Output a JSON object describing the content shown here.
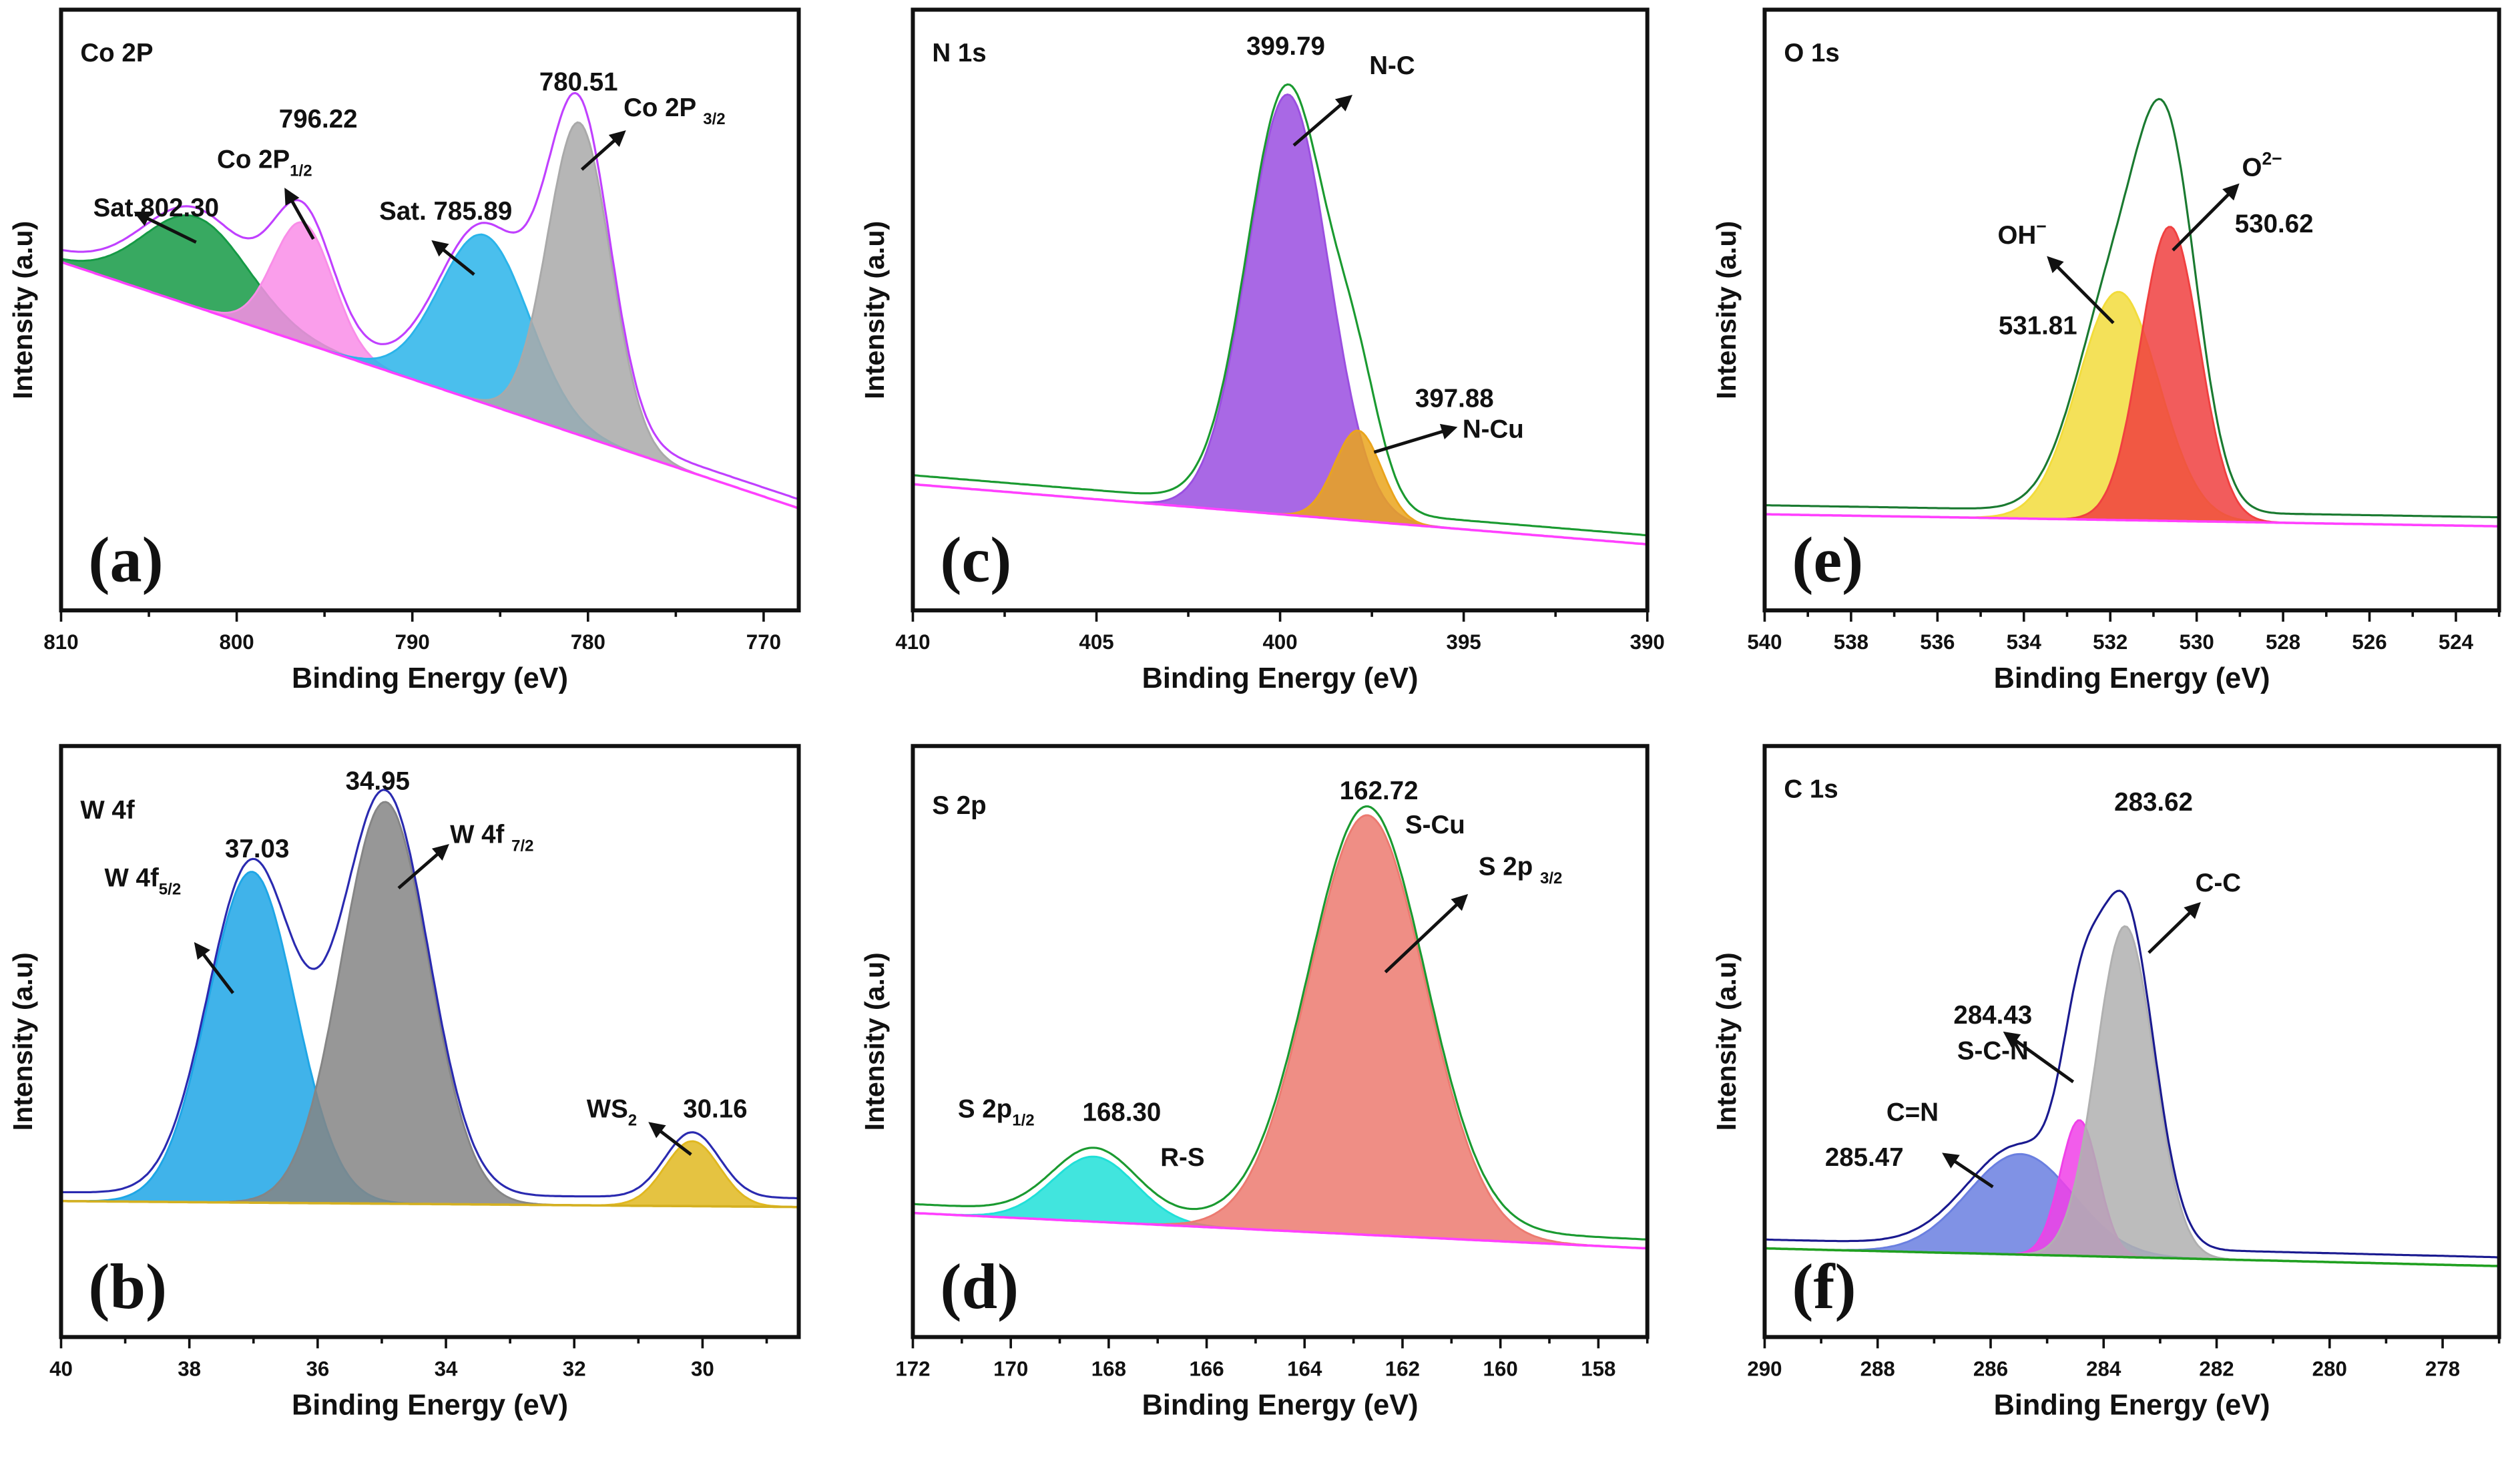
{
  "chart_data": [
    {
      "id": "a",
      "type": "area",
      "letter": "(a)",
      "title": "Co 2P",
      "xlabel": "Binding Energy (eV)",
      "ylabel": "Intensity (a.u)",
      "xlim": [
        810,
        768
      ],
      "ylim": [
        0,
        1
      ],
      "xticks": [
        810,
        800,
        790,
        780,
        770
      ],
      "minor_step": 5,
      "baseline": [
        0.58,
        0.17
      ],
      "envelope_color": "#c040ff",
      "baseline_color": "#ff40ff",
      "peaks": [
        {
          "name": "Sat. 802.30",
          "center": 802.3,
          "height": 0.15,
          "fwhm": 7,
          "color": "#159a45"
        },
        {
          "name": "Co 2P1/2 796.22",
          "center": 796.22,
          "height": 0.2,
          "fwhm": 4,
          "color": "#f98de8"
        },
        {
          "name": "Sat. 785.89",
          "center": 785.89,
          "height": 0.28,
          "fwhm": 6,
          "color": "#2ab4ea"
        },
        {
          "name": "Co 2P3/2 780.51",
          "center": 780.51,
          "height": 0.52,
          "fwhm": 4.2,
          "color": "#a9a9a9"
        }
      ],
      "annotations": [
        {
          "text": "796.22"
        },
        {
          "text": "Co 2P",
          "sub": "1/2"
        },
        {
          "text": "Sat.802.30"
        },
        {
          "text": "Sat. 785.89"
        },
        {
          "text": "780.51"
        },
        {
          "text": "Co 2P ",
          "sub": "3/2"
        }
      ]
    },
    {
      "id": "c",
      "type": "area",
      "letter": "(c)",
      "title": "N 1s",
      "xlabel": "Binding Energy (eV)",
      "ylabel": "Intensity (a.u)",
      "xlim": [
        410,
        390
      ],
      "ylim": [
        0,
        1
      ],
      "xticks": [
        410,
        405,
        400,
        395,
        390
      ],
      "minor_step": 2.5,
      "baseline": [
        0.21,
        0.11
      ],
      "envelope_color": "#1a9a30",
      "baseline_color": "#ff40ff",
      "peaks": [
        {
          "name": "N-C 399.79",
          "center": 399.79,
          "height": 0.7,
          "fwhm": 2.6,
          "color": "#9a4ee0"
        },
        {
          "name": "N-Cu 397.88",
          "center": 397.88,
          "height": 0.15,
          "fwhm": 1.5,
          "color": "#eaa41c"
        }
      ],
      "annotations": [
        {
          "text": "399.79"
        },
        {
          "text": "N-C"
        },
        {
          "text": "397.88"
        },
        {
          "text": "N-Cu"
        }
      ]
    },
    {
      "id": "e",
      "type": "area",
      "letter": "(e)",
      "title": "O 1s",
      "xlabel": "Binding Energy (eV)",
      "ylabel": "Intensity (a.u)",
      "xlim": [
        540,
        523
      ],
      "ylim": [
        0,
        1
      ],
      "xticks": [
        540,
        538,
        536,
        534,
        532,
        530,
        528,
        526,
        524
      ],
      "minor_step": 1,
      "baseline": [
        0.16,
        0.14
      ],
      "envelope_color": "#1a7a30",
      "baseline_color": "#ff40ff",
      "peaks": [
        {
          "name": "OH- 531.81",
          "center": 531.81,
          "height": 0.38,
          "fwhm": 2.2,
          "color": "#f2dc3c"
        },
        {
          "name": "O2- 530.62",
          "center": 530.62,
          "height": 0.49,
          "fwhm": 1.6,
          "color": "#f04040"
        }
      ],
      "annotations": [
        {
          "text": "OH",
          "sup": "−"
        },
        {
          "text": "531.81"
        },
        {
          "text": "O",
          "sup": "2−"
        },
        {
          "text": "530.62"
        }
      ]
    },
    {
      "id": "b",
      "type": "area",
      "letter": "(b)",
      "title": "W 4f",
      "xlabel": "Binding Energy (eV)",
      "ylabel": "Intensity (a.u)",
      "xlim": [
        40,
        28.5
      ],
      "ylim": [
        0,
        1
      ],
      "xticks": [
        40,
        38,
        36,
        34,
        32,
        30
      ],
      "minor_step": 1,
      "baseline": [
        0.23,
        0.22
      ],
      "envelope_color": "#2a2ab0",
      "baseline_color": "#d4b020",
      "peaks": [
        {
          "name": "W 4f5/2 37.03",
          "center": 37.03,
          "height": 0.56,
          "fwhm": 1.6,
          "color": "#1ea6e6"
        },
        {
          "name": "W 4f7/2 34.95",
          "center": 34.95,
          "height": 0.68,
          "fwhm": 1.6,
          "color": "#858585"
        },
        {
          "name": "WS2 30.16",
          "center": 30.16,
          "height": 0.11,
          "fwhm": 1.0,
          "color": "#e0b820"
        }
      ],
      "annotations": [
        {
          "text": "37.03"
        },
        {
          "text": "W 4f",
          "sub": "5/2"
        },
        {
          "text": "34.95"
        },
        {
          "text": "W 4f ",
          "sub": "7/2"
        },
        {
          "text": "WS",
          "sub": "2"
        },
        {
          "text": "30.16"
        }
      ]
    },
    {
      "id": "d",
      "type": "area",
      "letter": "(d)",
      "title": "S 2p",
      "xlabel": "Binding Energy (eV)",
      "ylabel": "Intensity (a.u)",
      "xlim": [
        172,
        157
      ],
      "ylim": [
        0,
        1
      ],
      "xticks": [
        172,
        170,
        168,
        166,
        164,
        162,
        160,
        158
      ],
      "minor_step": 1,
      "baseline": [
        0.21,
        0.15
      ],
      "envelope_color": "#1a9a30",
      "baseline_color": "#ff40ff",
      "peaks": [
        {
          "name": "S 2p1/2 R-S 168.30",
          "center": 168.3,
          "height": 0.11,
          "fwhm": 2.0,
          "color": "#20e0d8"
        },
        {
          "name": "S 2p3/2 S-Cu 162.72",
          "center": 162.72,
          "height": 0.71,
          "fwhm": 2.8,
          "color": "#ec7a70"
        }
      ],
      "annotations": [
        {
          "text": "162.72"
        },
        {
          "text": "S-Cu"
        },
        {
          "text": "S 2p ",
          "sub": "3/2"
        },
        {
          "text": "S 2p",
          "sub": "1/2"
        },
        {
          "text": "168.30"
        },
        {
          "text": "R-S"
        }
      ]
    },
    {
      "id": "f",
      "type": "area",
      "letter": "(f)",
      "title": "C 1s",
      "xlabel": "Binding Energy (eV)",
      "ylabel": "Intensity (a.u)",
      "xlim": [
        290,
        277
      ],
      "ylim": [
        0,
        1
      ],
      "xticks": [
        290,
        288,
        286,
        284,
        282,
        280,
        278
      ],
      "minor_step": 1,
      "baseline": [
        0.15,
        0.12
      ],
      "envelope_color": "#1a1a90",
      "baseline_color": "#20a020",
      "peaks": [
        {
          "name": "C=N 285.47",
          "center": 285.47,
          "height": 0.17,
          "fwhm": 2.2,
          "color": "#6a7fe0"
        },
        {
          "name": "S-C-N 284.43",
          "center": 284.43,
          "height": 0.23,
          "fwhm": 0.8,
          "color": "#f040e8"
        },
        {
          "name": "C-C 283.62",
          "center": 283.62,
          "height": 0.56,
          "fwhm": 1.2,
          "color": "#b0b0b0"
        }
      ],
      "annotations": [
        {
          "text": "283.62"
        },
        {
          "text": "C-C"
        },
        {
          "text": "284.43"
        },
        {
          "text": "S-C-N"
        },
        {
          "text": "C=N"
        },
        {
          "text": "285.47"
        }
      ]
    }
  ]
}
